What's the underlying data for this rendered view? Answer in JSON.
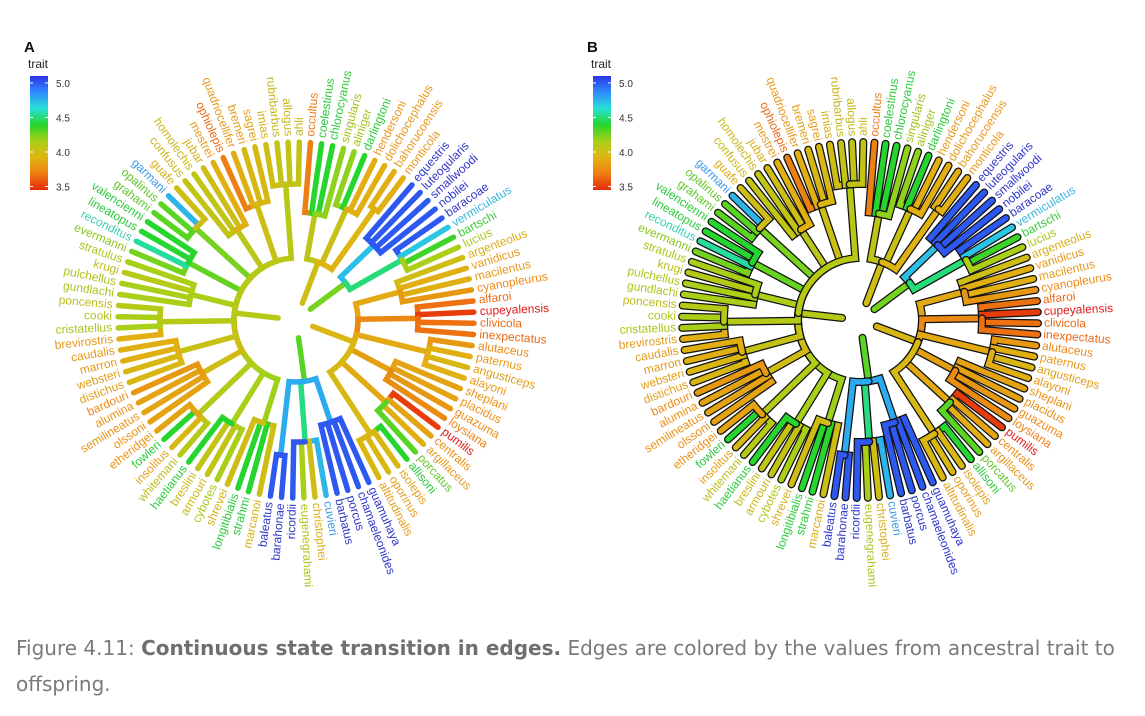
{
  "figure": {
    "panels": [
      {
        "letter": "A",
        "legend_title": "trait",
        "outlined": false
      },
      {
        "letter": "B",
        "legend_title": "trait",
        "outlined": true
      }
    ],
    "legend": {
      "ticks": [
        "5.0",
        "4.5",
        "4.0",
        "3.5"
      ],
      "tick_values": [
        5.0,
        4.5,
        4.0,
        3.5
      ],
      "range": [
        3.45,
        5.1
      ],
      "colors": [
        "#2d33e6",
        "#2f8cff",
        "#28e0d6",
        "#26d62a",
        "#a8d018",
        "#e0b412",
        "#ee7d12",
        "#e62a0c"
      ]
    },
    "root_trait": 4.05,
    "groups": [
      {
        "trait": 3.95,
        "tips": [
          {
            "label": "occultus",
            "trait": 3.7,
            "color": "#ef7d18"
          },
          {
            "label": "coelestinus",
            "trait": 4.4,
            "color": "#2dca3c"
          },
          {
            "label": "chlorocyanus",
            "trait": 4.4,
            "color": "#2dca3c"
          },
          {
            "label": "singularis",
            "trait": 4.2,
            "color": "#a6c01e"
          },
          {
            "label": "aliniger",
            "trait": 4.2,
            "color": "#a6c01e"
          },
          {
            "label": "darlingtoni",
            "trait": 4.4,
            "color": "#2dca3c"
          },
          {
            "label": "hendersoni",
            "trait": 3.9,
            "color": "#e69a1e"
          },
          {
            "label": "dolichocephalus",
            "trait": 3.9,
            "color": "#e69a1e"
          },
          {
            "label": "bahorucoensis",
            "trait": 3.9,
            "color": "#e69a1e"
          },
          {
            "label": "monticola",
            "trait": 3.9,
            "color": "#e69a1e"
          }
        ]
      },
      {
        "trait": 4.45,
        "tips": [
          {
            "label": "equestris",
            "trait": 5.0,
            "color": "#3038c8"
          },
          {
            "label": "luteogularis",
            "trait": 5.0,
            "color": "#3038c8"
          },
          {
            "label": "smallwoodi",
            "trait": 5.0,
            "color": "#3038c8"
          },
          {
            "label": "nobilei",
            "trait": 5.0,
            "color": "#3038c8"
          },
          {
            "label": "baracoae",
            "trait": 5.0,
            "color": "#3038c8"
          },
          {
            "label": "vermiculatus",
            "trait": 4.7,
            "color": "#3cb6e0"
          },
          {
            "label": "bartschi",
            "trait": 4.35,
            "color": "#3ecb3a"
          },
          {
            "label": "lucius",
            "trait": 4.15,
            "color": "#b0c41c"
          }
        ]
      },
      {
        "trait": 3.85,
        "tips": [
          {
            "label": "argenteolus",
            "trait": 4.0,
            "color": "#d8b01a"
          },
          {
            "label": "vanidicus",
            "trait": 3.9,
            "color": "#e69a1e"
          },
          {
            "label": "macilentus",
            "trait": 3.9,
            "color": "#e69a1e"
          },
          {
            "label": "cyanopleurus",
            "trait": 3.8,
            "color": "#ef8a18"
          },
          {
            "label": "alfaroi",
            "trait": 3.65,
            "color": "#ec6a14"
          },
          {
            "label": "cupeyalensis",
            "trait": 3.5,
            "color": "#e31b1b"
          },
          {
            "label": "clivicola",
            "trait": 3.65,
            "color": "#ec6a14"
          },
          {
            "label": "inexpectatus",
            "trait": 3.65,
            "color": "#ec6a14"
          },
          {
            "label": "alutaceus",
            "trait": 3.8,
            "color": "#ef8a18"
          },
          {
            "label": "paternus",
            "trait": 3.9,
            "color": "#e69a1e"
          },
          {
            "label": "angusticeps",
            "trait": 3.95,
            "color": "#e2a01c"
          },
          {
            "label": "alayoni",
            "trait": 3.9,
            "color": "#e69a1e"
          },
          {
            "label": "sheplani",
            "trait": 3.85,
            "color": "#ea9218"
          },
          {
            "label": "placidus",
            "trait": 3.85,
            "color": "#ea9218"
          },
          {
            "label": "guazuma",
            "trait": 3.8,
            "color": "#ef8a18"
          },
          {
            "label": "loysiana",
            "trait": 3.75,
            "color": "#ee8016"
          },
          {
            "label": "pumilis",
            "trait": 3.5,
            "color": "#e31b1b"
          },
          {
            "label": "centralis",
            "trait": 3.85,
            "color": "#ea9218"
          },
          {
            "label": "argillaceus",
            "trait": 3.9,
            "color": "#e69a1e"
          },
          {
            "label": "porcatus",
            "trait": 4.3,
            "color": "#62c82a"
          },
          {
            "label": "allisoni",
            "trait": 4.4,
            "color": "#2dca3c"
          },
          {
            "label": "isolepis",
            "trait": 3.95,
            "color": "#e2a01c"
          },
          {
            "label": "oporinus",
            "trait": 3.95,
            "color": "#e2a01c"
          },
          {
            "label": "altitudinalis",
            "trait": 3.95,
            "color": "#e2a01c"
          }
        ]
      },
      {
        "trait": 4.55,
        "tips": [
          {
            "label": "guamuhaya",
            "trait": 5.0,
            "color": "#3038c8"
          },
          {
            "label": "chamaeleonides",
            "trait": 5.0,
            "color": "#3038c8"
          },
          {
            "label": "porcus",
            "trait": 5.0,
            "color": "#3038c8"
          },
          {
            "label": "barbatus",
            "trait": 5.0,
            "color": "#3038c8"
          },
          {
            "label": "cuvieri",
            "trait": 4.75,
            "color": "#3c9ae8"
          },
          {
            "label": "christophei",
            "trait": 4.0,
            "color": "#d8b01a"
          },
          {
            "label": "eugenegrahami",
            "trait": 4.15,
            "color": "#b0c41c"
          },
          {
            "label": "ricordii",
            "trait": 5.0,
            "color": "#3038c8"
          },
          {
            "label": "barahonae",
            "trait": 5.0,
            "color": "#3038c8"
          },
          {
            "label": "baleatus",
            "trait": 5.0,
            "color": "#3038c8"
          }
        ]
      },
      {
        "trait": 4.15,
        "tips": [
          {
            "label": "marcanoi",
            "trait": 4.0,
            "color": "#d8b01a"
          },
          {
            "label": "strahmi",
            "trait": 4.4,
            "color": "#2dca3c"
          },
          {
            "label": "longitibialis",
            "trait": 4.4,
            "color": "#2dca3c"
          },
          {
            "label": "shrevei",
            "trait": 4.0,
            "color": "#d8b01a"
          },
          {
            "label": "cybotes",
            "trait": 4.15,
            "color": "#b0c41c"
          },
          {
            "label": "armouri",
            "trait": 4.05,
            "color": "#c8b81a"
          },
          {
            "label": "breslini",
            "trait": 4.05,
            "color": "#c8b81a"
          },
          {
            "label": "haetianus",
            "trait": 4.4,
            "color": "#2dca3c"
          },
          {
            "label": "whitemani",
            "trait": 4.1,
            "color": "#bcbd1c"
          },
          {
            "label": "insolitus",
            "trait": 3.95,
            "color": "#e2a01c"
          },
          {
            "label": "fowleri",
            "trait": 4.4,
            "color": "#2dca3c"
          },
          {
            "label": "etheridgei",
            "trait": 3.85,
            "color": "#ea9218"
          },
          {
            "label": "olssoni",
            "trait": 3.85,
            "color": "#ea9218"
          },
          {
            "label": "semilineatus",
            "trait": 3.85,
            "color": "#ea9218"
          },
          {
            "label": "alumina",
            "trait": 3.85,
            "color": "#ea9218"
          },
          {
            "label": "bardouri",
            "trait": 3.8,
            "color": "#ef8a18"
          },
          {
            "label": "distichus",
            "trait": 3.95,
            "color": "#e2a01c"
          },
          {
            "label": "websteri",
            "trait": 3.95,
            "color": "#e2a01c"
          },
          {
            "label": "marron",
            "trait": 3.9,
            "color": "#e69a1e"
          },
          {
            "label": "caudalis",
            "trait": 3.9,
            "color": "#e69a1e"
          },
          {
            "label": "brevirostris",
            "trait": 3.9,
            "color": "#e69a1e"
          },
          {
            "label": "cristatellus",
            "trait": 4.15,
            "color": "#b0c41c"
          },
          {
            "label": "cooki",
            "trait": 4.15,
            "color": "#b0c41c"
          },
          {
            "label": "poncensis",
            "trait": 4.1,
            "color": "#bcbd1c"
          },
          {
            "label": "gundlachi",
            "trait": 4.15,
            "color": "#b0c41c"
          },
          {
            "label": "pulchellus",
            "trait": 4.15,
            "color": "#b0c41c"
          },
          {
            "label": "krugi",
            "trait": 4.1,
            "color": "#bcbd1c"
          },
          {
            "label": "stratulus",
            "trait": 4.15,
            "color": "#b0c41c"
          },
          {
            "label": "evermanni",
            "trait": 4.25,
            "color": "#8cc420"
          },
          {
            "label": "reconditus",
            "trait": 4.55,
            "color": "#3ccfb4"
          },
          {
            "label": "lineatopus",
            "trait": 4.4,
            "color": "#2dca3c"
          },
          {
            "label": "valencienni",
            "trait": 4.4,
            "color": "#2dca3c"
          },
          {
            "label": "grahami",
            "trait": 4.3,
            "color": "#62c82a"
          },
          {
            "label": "opalinus",
            "trait": 4.3,
            "color": "#62c82a"
          },
          {
            "label": "garmani",
            "trait": 4.75,
            "color": "#3c9ae8"
          },
          {
            "label": "guafe",
            "trait": 4.0,
            "color": "#d8b01a"
          },
          {
            "label": "confusus",
            "trait": 4.05,
            "color": "#c8b81a"
          },
          {
            "label": "homolechis",
            "trait": 4.05,
            "color": "#c8b81a"
          },
          {
            "label": "jubar",
            "trait": 4.0,
            "color": "#d8b01a"
          },
          {
            "label": "mestrei",
            "trait": 3.9,
            "color": "#e69a1e"
          },
          {
            "label": "ophiolepis",
            "trait": 3.7,
            "color": "#ec6a14"
          },
          {
            "label": "quadriocellifer",
            "trait": 3.9,
            "color": "#e69a1e"
          },
          {
            "label": "bremeri",
            "trait": 3.95,
            "color": "#e2a01c"
          },
          {
            "label": "sagrei",
            "trait": 3.95,
            "color": "#e2a01c"
          },
          {
            "label": "imias",
            "trait": 4.0,
            "color": "#d8b01a"
          },
          {
            "label": "rubribarbus",
            "trait": 4.05,
            "color": "#c8b81a"
          },
          {
            "label": "allogus",
            "trait": 4.05,
            "color": "#c8b81a"
          },
          {
            "label": "ahli",
            "trait": 4.05,
            "color": "#c8b81a"
          }
        ]
      }
    ]
  },
  "caption": {
    "prefix": "Figure 4.11: ",
    "bold": "Continuous state transition in edges.",
    "rest": " Edges are colored by the values from ancestral trait to offspring."
  }
}
